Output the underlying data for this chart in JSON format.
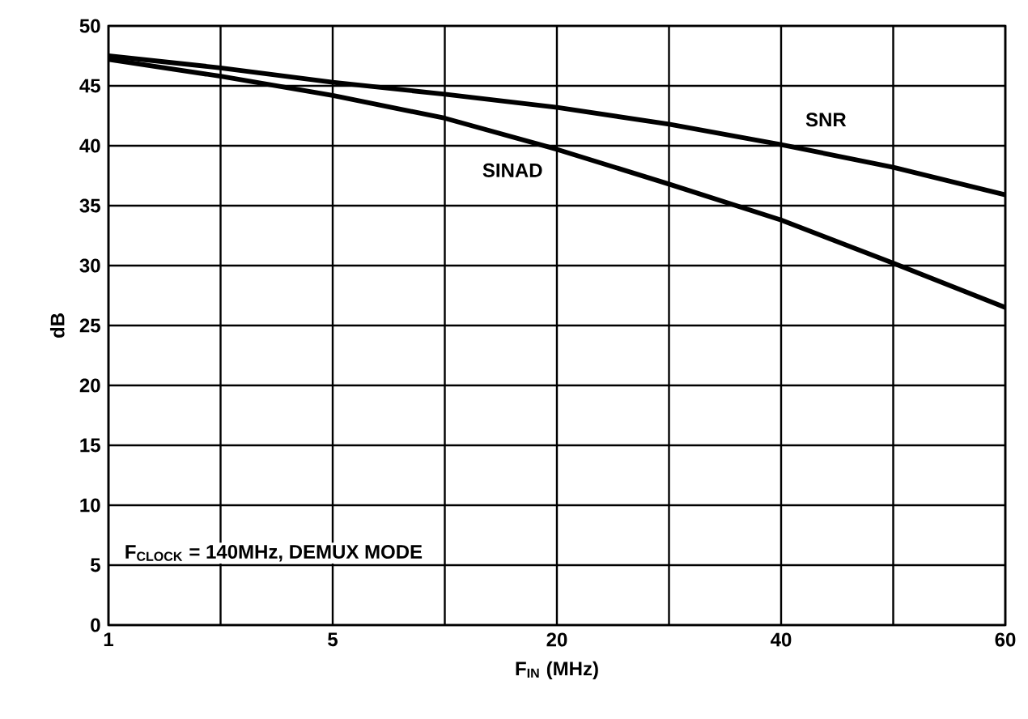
{
  "chart_data": {
    "type": "line",
    "xlabel": "F$_{IN}$ (MHz)",
    "ylabel": "dB",
    "categories": [
      "1",
      null,
      "5",
      null,
      "20",
      null,
      "40",
      null,
      "60"
    ],
    "series": [
      {
        "name": "SNR",
        "color": "#000000",
        "values": [
          47.5,
          46.5,
          45.3,
          44.3,
          43.2,
          41.8,
          40.1,
          38.2,
          35.9
        ]
      },
      {
        "name": "SINAD",
        "color": "#000000",
        "values": [
          47.2,
          45.8,
          44.2,
          42.3,
          39.7,
          36.8,
          33.8,
          30.2,
          26.5
        ]
      }
    ],
    "ylim": [
      0,
      50
    ],
    "yticks": [
      0,
      5,
      10,
      15,
      20,
      25,
      30,
      35,
      40,
      45,
      50
    ],
    "grid": true,
    "marker": "none",
    "line_style": "solid",
    "annotations": [
      "F$_{CLOCK}$ = 140MHz, DEMUX MODE"
    ]
  }
}
